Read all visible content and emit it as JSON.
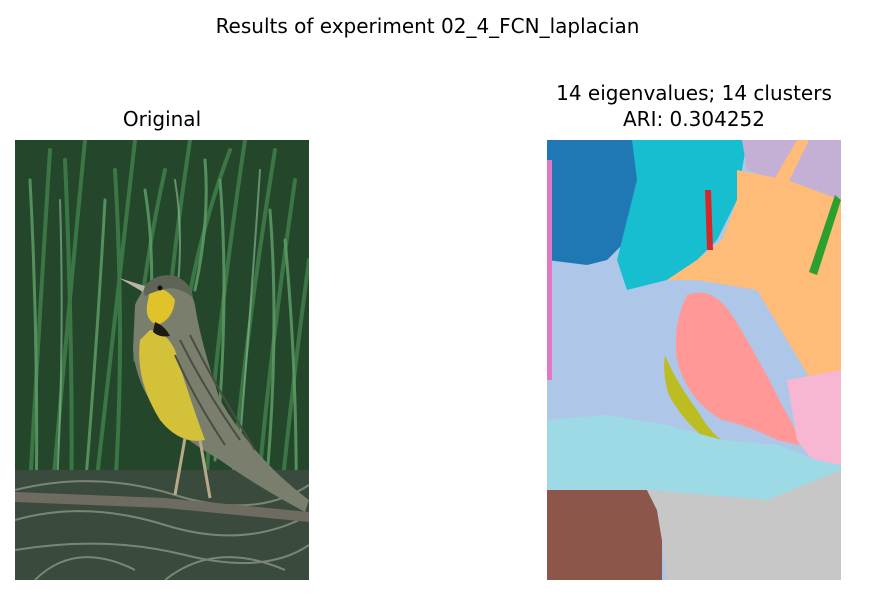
{
  "figure": {
    "suptitle": "Results of experiment 02_4_FCN_laplacian"
  },
  "panels": [
    {
      "title_lines": [
        "Original"
      ],
      "image": "photo-bird-in-grass"
    },
    {
      "title_lines": [
        "14 eigenvalues; 14 clusters",
        "ARI: 0.304252"
      ],
      "image": "segmentation-map",
      "eigenvalues": 14,
      "clusters": 14,
      "ari": 0.304252
    }
  ],
  "colors": {
    "grass_dark": "#1f3d26",
    "grass_mid": "#2f6b3a",
    "grass_light": "#5fa06a",
    "bird_gray": "#7b8070",
    "bird_yellow": "#d6c43a",
    "seg_blue": "#1f77b4",
    "seg_cyan": "#17becf",
    "seg_lavender": "#c5b0d5",
    "seg_lightblue": "#aec7e8",
    "seg_peach": "#ffbb78",
    "seg_salmon": "#ff9896",
    "seg_olive": "#bcbd22",
    "seg_paleblue": "#9edae5",
    "seg_pink": "#f7b6d2",
    "seg_brown": "#8c564b",
    "seg_gray": "#c7c7c7",
    "seg_red": "#d62728",
    "seg_green": "#2ca02c",
    "seg_magenta": "#e377c2"
  }
}
